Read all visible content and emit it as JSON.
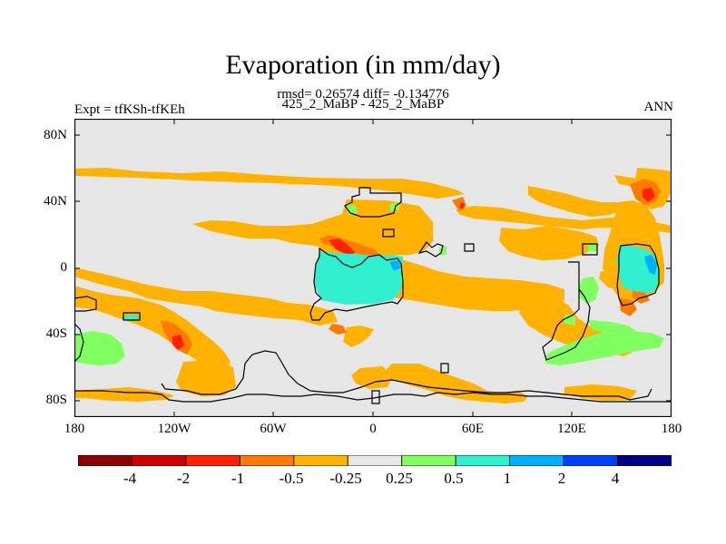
{
  "title": "Evaporation (in mm/day)",
  "stats_line": "rmsd= 0.26574 diff= -0.134776",
  "case_line": "425_2_MaBP - 425_2_MaBP",
  "left_string": "Expt = tfKSh-tfKEh",
  "right_string": "ANN",
  "y_ticks": [
    "80N",
    "40N",
    "0",
    "40S",
    "80S"
  ],
  "x_ticks": [
    "180",
    "120W",
    "60W",
    "0",
    "60E",
    "120E",
    "180"
  ],
  "colorbar": {
    "labels": [
      "-4",
      "-2",
      "-1",
      "-0.5",
      "-0.25",
      "0.25",
      "0.5",
      "1",
      "2",
      "4"
    ],
    "colors": [
      "#8b0000",
      "#cc0000",
      "#ff2200",
      "#ff7a00",
      "#ffb300",
      "#e6e6e6",
      "#80ff60",
      "#30f0d0",
      "#00b0ff",
      "#0040ff",
      "#00008b"
    ]
  },
  "map_colors": {
    "background": "#e6e6e6",
    "neg_small": "#ffb300",
    "neg_mid": "#ff7a00",
    "neg_large": "#ff2200",
    "pos_small": "#80ff60",
    "pos_mid": "#30f0d0",
    "pos_large": "#00b0ff"
  }
}
